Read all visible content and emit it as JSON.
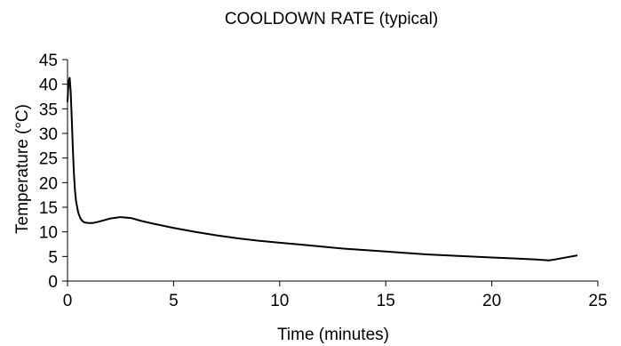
{
  "chart_data": {
    "type": "line",
    "title": "COOLDOWN RATE (typical)",
    "xlabel": "Time (minutes)",
    "ylabel": "Temperature (°C)",
    "xlim": [
      0,
      25
    ],
    "ylim": [
      0,
      45
    ],
    "xticks": [
      0,
      5,
      10,
      15,
      20,
      25
    ],
    "yticks": [
      0,
      5,
      10,
      15,
      20,
      25,
      30,
      35,
      40,
      45
    ],
    "xtick_labels": [
      "0",
      "5",
      "10",
      "15",
      "20",
      "25"
    ],
    "ytick_labels": [
      "0",
      "5",
      "10",
      "15",
      "20",
      "25",
      "30",
      "35",
      "40",
      "45"
    ],
    "grid": false,
    "legend": "none",
    "line_color": "#000000",
    "series": [
      {
        "x": [
          0.0,
          0.05,
          0.1,
          0.15,
          0.2,
          0.25,
          0.3,
          0.35,
          0.4,
          0.5,
          0.6,
          0.7,
          0.8,
          1.0,
          1.2,
          1.5,
          2.0,
          2.5,
          3.0,
          3.5,
          4.0,
          5.0,
          6.0,
          7.0,
          8.0,
          9.0,
          10.0,
          11.0,
          12.0,
          13.0,
          14.0,
          15.0,
          16.0,
          17.0,
          18.0,
          19.0,
          20.0,
          21.0,
          22.0,
          22.7,
          23.0,
          23.5,
          24.0
        ],
        "y": [
          36.5,
          40.5,
          41.3,
          38.5,
          33.0,
          27.0,
          22.0,
          18.5,
          16.3,
          14.0,
          12.8,
          12.2,
          11.9,
          11.8,
          11.8,
          12.1,
          12.7,
          13.0,
          12.8,
          12.2,
          11.7,
          10.8,
          10.0,
          9.3,
          8.7,
          8.2,
          7.8,
          7.4,
          7.0,
          6.6,
          6.3,
          6.0,
          5.7,
          5.4,
          5.2,
          5.0,
          4.8,
          4.6,
          4.4,
          4.2,
          4.4,
          4.8,
          5.2
        ]
      }
    ]
  }
}
